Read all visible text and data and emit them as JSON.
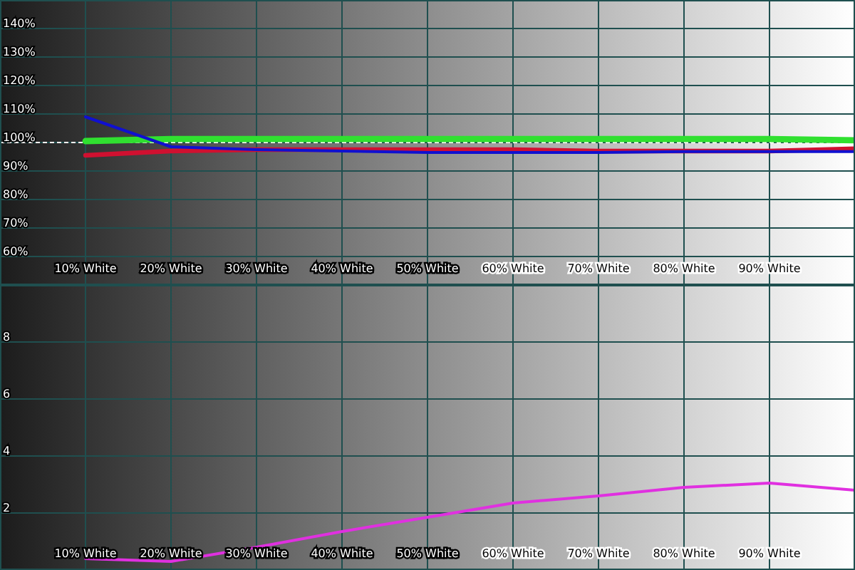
{
  "chart_data": [
    {
      "type": "line",
      "xlim": [
        0,
        100
      ],
      "xticks": [
        {
          "value": 10,
          "label": "10% White"
        },
        {
          "value": 20,
          "label": "20% White"
        },
        {
          "value": 30,
          "label": "30% White"
        },
        {
          "value": 40,
          "label": "40% White"
        },
        {
          "value": 50,
          "label": "50% White"
        },
        {
          "value": 60,
          "label": "60% White"
        },
        {
          "value": 70,
          "label": "70% White"
        },
        {
          "value": 80,
          "label": "80% White"
        },
        {
          "value": 90,
          "label": "90% White"
        }
      ],
      "ylim": [
        50,
        150
      ],
      "yticks": [
        {
          "value": 60,
          "label": "60%"
        },
        {
          "value": 70,
          "label": "70%"
        },
        {
          "value": 80,
          "label": "80%"
        },
        {
          "value": 90,
          "label": "90%"
        },
        {
          "value": 100,
          "label": "100%"
        },
        {
          "value": 110,
          "label": "110%"
        },
        {
          "value": 120,
          "label": "120%"
        },
        {
          "value": 130,
          "label": "130%"
        },
        {
          "value": 140,
          "label": "140%"
        }
      ],
      "grid": true,
      "line_style": "solid",
      "marker": "none",
      "ref_lines": [
        {
          "axis": "y",
          "value": 100,
          "color": "#ffffff",
          "line_style": "dashed"
        }
      ],
      "x": [
        10,
        20,
        30,
        40,
        50,
        60,
        70,
        80,
        90,
        100
      ],
      "series": [
        {
          "color": "#30e030",
          "values": [
            100.5,
            101.2,
            101.2,
            101.2,
            101.2,
            101.2,
            101.2,
            101.2,
            101.2,
            100.8
          ]
        },
        {
          "color": "#d01030",
          "values": [
            95.5,
            97,
            97.5,
            97.5,
            97.5,
            97.5,
            97,
            97,
            97,
            97.8
          ]
        },
        {
          "color": "#1010d0",
          "values": [
            109,
            98.5,
            97.5,
            97,
            96.5,
            96.5,
            96.5,
            96.8,
            96.8,
            96.8
          ]
        }
      ]
    },
    {
      "type": "line",
      "xlim": [
        0,
        100
      ],
      "xticks": [
        {
          "value": 10,
          "label": "10% White"
        },
        {
          "value": 20,
          "label": "20% White"
        },
        {
          "value": 30,
          "label": "30% White"
        },
        {
          "value": 40,
          "label": "40% White"
        },
        {
          "value": 50,
          "label": "50% White"
        },
        {
          "value": 60,
          "label": "60% White"
        },
        {
          "value": 70,
          "label": "70% White"
        },
        {
          "value": 80,
          "label": "80% White"
        },
        {
          "value": 90,
          "label": "90% White"
        }
      ],
      "ylim": [
        0,
        10
      ],
      "yticks": [
        2,
        4,
        6,
        8
      ],
      "grid": true,
      "line_style": "solid",
      "marker": "none",
      "x": [
        10,
        20,
        30,
        40,
        50,
        60,
        70,
        80,
        90,
        100
      ],
      "series": [
        {
          "color": "#e030e0",
          "values": [
            0.4,
            0.3,
            0.8,
            1.35,
            1.85,
            2.35,
            2.6,
            2.9,
            3.05,
            2.8
          ]
        }
      ]
    }
  ]
}
